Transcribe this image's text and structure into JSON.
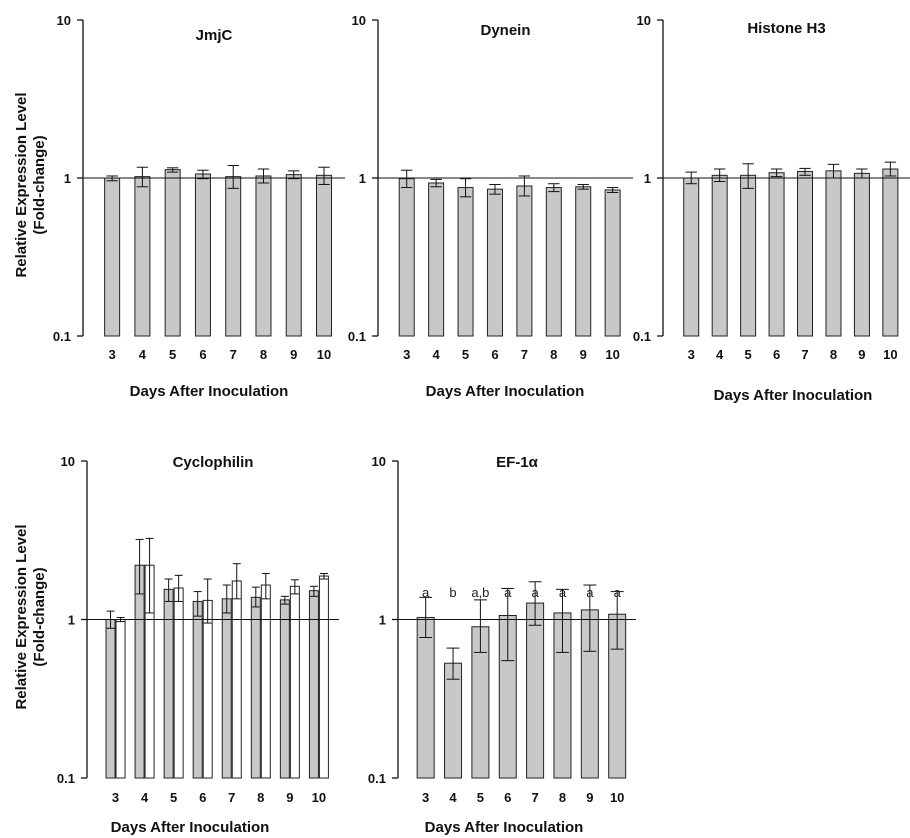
{
  "figure": {
    "y_axis_title_lines": [
      "Relative Expression Level",
      "(Fold-change)"
    ],
    "x_axis_title": "Days After Inoculation"
  },
  "chart_data": [
    {
      "type": "bar",
      "title": "JmjC",
      "yscale": "log",
      "ylim": [
        0.1,
        10
      ],
      "yticks": [
        "0.1",
        "1",
        "10"
      ],
      "reference_line": 1,
      "categories": [
        "3",
        "4",
        "5",
        "6",
        "7",
        "8",
        "9",
        "10"
      ],
      "series": [
        {
          "values": [
            1.0,
            1.02,
            1.13,
            1.06,
            1.02,
            1.03,
            1.05,
            1.04
          ],
          "err_low": [
            0.96,
            0.88,
            1.09,
            0.99,
            0.86,
            0.93,
            0.99,
            0.91
          ],
          "err_high": [
            1.03,
            1.17,
            1.16,
            1.12,
            1.2,
            1.14,
            1.11,
            1.17
          ]
        }
      ]
    },
    {
      "type": "bar",
      "title": "Dynein",
      "yscale": "log",
      "ylim": [
        0.1,
        10
      ],
      "yticks": [
        "0.1",
        "1",
        "10"
      ],
      "reference_line": 1,
      "categories": [
        "3",
        "4",
        "5",
        "6",
        "7",
        "8",
        "9",
        "10"
      ],
      "series": [
        {
          "values": [
            0.99,
            0.93,
            0.87,
            0.85,
            0.89,
            0.87,
            0.88,
            0.84
          ],
          "err_low": [
            0.87,
            0.88,
            0.76,
            0.79,
            0.77,
            0.82,
            0.85,
            0.81
          ],
          "err_high": [
            1.12,
            0.98,
            0.99,
            0.91,
            1.03,
            0.92,
            0.91,
            0.87
          ]
        }
      ]
    },
    {
      "type": "bar",
      "title": "Histone H3",
      "yscale": "log",
      "ylim": [
        0.1,
        10
      ],
      "yticks": [
        "0.1",
        "1",
        "10"
      ],
      "reference_line": 1,
      "categories": [
        "3",
        "4",
        "5",
        "6",
        "7",
        "8",
        "9",
        "10"
      ],
      "series": [
        {
          "values": [
            1.0,
            1.04,
            1.04,
            1.08,
            1.1,
            1.11,
            1.07,
            1.14
          ],
          "err_low": [
            0.92,
            0.95,
            0.86,
            1.02,
            1.04,
            1.0,
            1.0,
            1.03
          ],
          "err_high": [
            1.09,
            1.14,
            1.23,
            1.14,
            1.15,
            1.22,
            1.14,
            1.26
          ]
        }
      ]
    },
    {
      "type": "bar",
      "title": "Cyclophilin",
      "yscale": "log",
      "ylim": [
        0.1,
        10
      ],
      "yticks": [
        "0.1",
        "1",
        "10"
      ],
      "reference_line": 1,
      "categories": [
        "3",
        "4",
        "5",
        "6",
        "7",
        "8",
        "9",
        "10"
      ],
      "series": [
        {
          "fill": "#c8c8c8",
          "values": [
            1.0,
            2.2,
            1.55,
            1.3,
            1.35,
            1.38,
            1.33,
            1.52
          ],
          "err_low": [
            0.88,
            1.45,
            1.3,
            1.05,
            1.1,
            1.2,
            1.25,
            1.4
          ],
          "err_high": [
            1.13,
            3.2,
            1.8,
            1.5,
            1.65,
            1.6,
            1.4,
            1.62
          ]
        },
        {
          "fill": "#ffffff",
          "values": [
            1.0,
            2.2,
            1.58,
            1.32,
            1.75,
            1.65,
            1.62,
            1.88
          ],
          "err_low": [
            0.97,
            1.1,
            1.3,
            0.95,
            1.35,
            1.35,
            1.45,
            1.8
          ],
          "err_high": [
            1.03,
            3.25,
            1.9,
            1.8,
            2.25,
            1.95,
            1.78,
            1.95
          ]
        }
      ]
    },
    {
      "type": "bar",
      "title": "EF-1α",
      "yscale": "log",
      "ylim": [
        0.1,
        10
      ],
      "yticks": [
        "0.1",
        "1",
        "10"
      ],
      "reference_line": 1,
      "categories": [
        "3",
        "4",
        "5",
        "6",
        "7",
        "8",
        "9",
        "10"
      ],
      "annotations": [
        "a",
        "b",
        "a,b",
        "a",
        "a",
        "a",
        "a",
        "a"
      ],
      "series": [
        {
          "values": [
            1.03,
            0.53,
            0.9,
            1.06,
            1.27,
            1.1,
            1.15,
            1.08
          ],
          "err_low": [
            0.77,
            0.42,
            0.62,
            0.55,
            0.92,
            0.62,
            0.63,
            0.65
          ],
          "err_high": [
            1.38,
            0.66,
            1.33,
            1.57,
            1.73,
            1.55,
            1.65,
            1.5
          ]
        }
      ]
    }
  ]
}
